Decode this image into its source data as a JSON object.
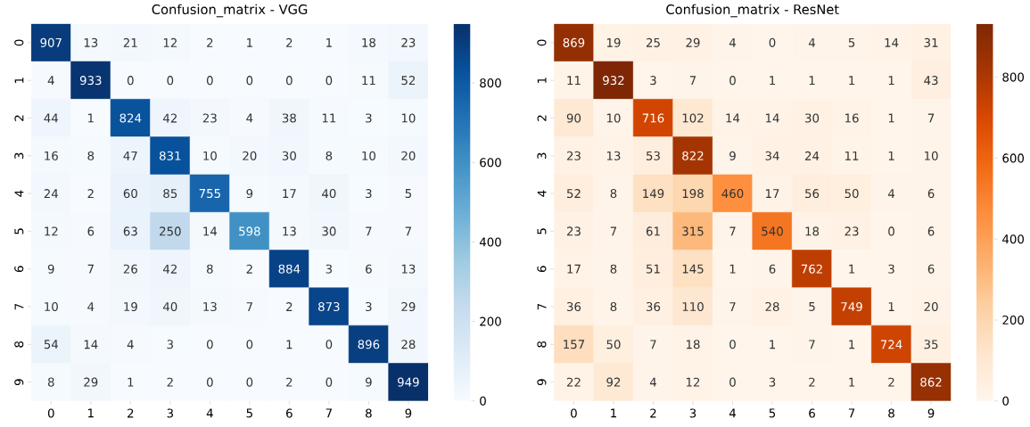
{
  "chart_data": [
    {
      "type": "heatmap",
      "title": "Confusion_matrix - VGG",
      "categories": [
        "0",
        "1",
        "2",
        "3",
        "4",
        "5",
        "6",
        "7",
        "8",
        "9"
      ],
      "y_categories": [
        "0",
        "1",
        "2",
        "3",
        "4",
        "5",
        "6",
        "7",
        "8",
        "9"
      ],
      "cells": [
        [
          907,
          13,
          21,
          12,
          2,
          1,
          2,
          1,
          18,
          23
        ],
        [
          4,
          933,
          0,
          0,
          0,
          0,
          0,
          0,
          11,
          52
        ],
        [
          44,
          1,
          824,
          42,
          23,
          4,
          38,
          11,
          3,
          10
        ],
        [
          16,
          8,
          47,
          831,
          10,
          20,
          30,
          8,
          10,
          20
        ],
        [
          24,
          2,
          60,
          85,
          755,
          9,
          17,
          40,
          3,
          5
        ],
        [
          12,
          6,
          63,
          250,
          14,
          598,
          13,
          30,
          7,
          7
        ],
        [
          9,
          7,
          26,
          42,
          8,
          2,
          884,
          3,
          6,
          13
        ],
        [
          10,
          4,
          19,
          40,
          13,
          7,
          2,
          873,
          3,
          29
        ],
        [
          54,
          14,
          4,
          3,
          0,
          0,
          1,
          0,
          896,
          28
        ],
        [
          8,
          29,
          1,
          2,
          0,
          0,
          2,
          0,
          9,
          949
        ]
      ],
      "colors": [
        "#f7fbff",
        "#deebf7",
        "#c6dbef",
        "#9ecae1",
        "#6baed6",
        "#4292c6",
        "#2171b5",
        "#08519c",
        "#08306b"
      ],
      "clim": [
        0,
        949
      ],
      "cticks": [
        0,
        200,
        400,
        600,
        800
      ],
      "data_labels": true
    },
    {
      "type": "heatmap",
      "title": "Confusion_matrix - ResNet",
      "categories": [
        "0",
        "1",
        "2",
        "3",
        "4",
        "5",
        "6",
        "7",
        "8",
        "9"
      ],
      "y_categories": [
        "0",
        "1",
        "2",
        "3",
        "4",
        "5",
        "6",
        "7",
        "8",
        "9"
      ],
      "cells": [
        [
          869,
          19,
          25,
          29,
          4,
          0,
          4,
          5,
          14,
          31
        ],
        [
          11,
          932,
          3,
          7,
          0,
          1,
          1,
          1,
          1,
          43
        ],
        [
          90,
          10,
          716,
          102,
          14,
          14,
          30,
          16,
          1,
          7
        ],
        [
          23,
          13,
          53,
          822,
          9,
          34,
          24,
          11,
          1,
          10
        ],
        [
          52,
          8,
          149,
          198,
          460,
          17,
          56,
          50,
          4,
          6
        ],
        [
          23,
          7,
          61,
          315,
          7,
          540,
          18,
          23,
          0,
          6
        ],
        [
          17,
          8,
          51,
          145,
          1,
          6,
          762,
          1,
          3,
          6
        ],
        [
          36,
          8,
          36,
          110,
          7,
          28,
          5,
          749,
          1,
          20
        ],
        [
          157,
          50,
          7,
          18,
          0,
          1,
          7,
          1,
          724,
          35
        ],
        [
          22,
          92,
          4,
          12,
          0,
          3,
          2,
          1,
          2,
          862
        ]
      ],
      "colors": [
        "#fff5eb",
        "#fee6ce",
        "#fdd0a2",
        "#fdae6b",
        "#fd8d3c",
        "#f16913",
        "#d94801",
        "#a63603",
        "#7f2704"
      ],
      "clim": [
        0,
        932
      ],
      "cticks": [
        0,
        200,
        400,
        600,
        800
      ],
      "data_labels": true
    }
  ]
}
